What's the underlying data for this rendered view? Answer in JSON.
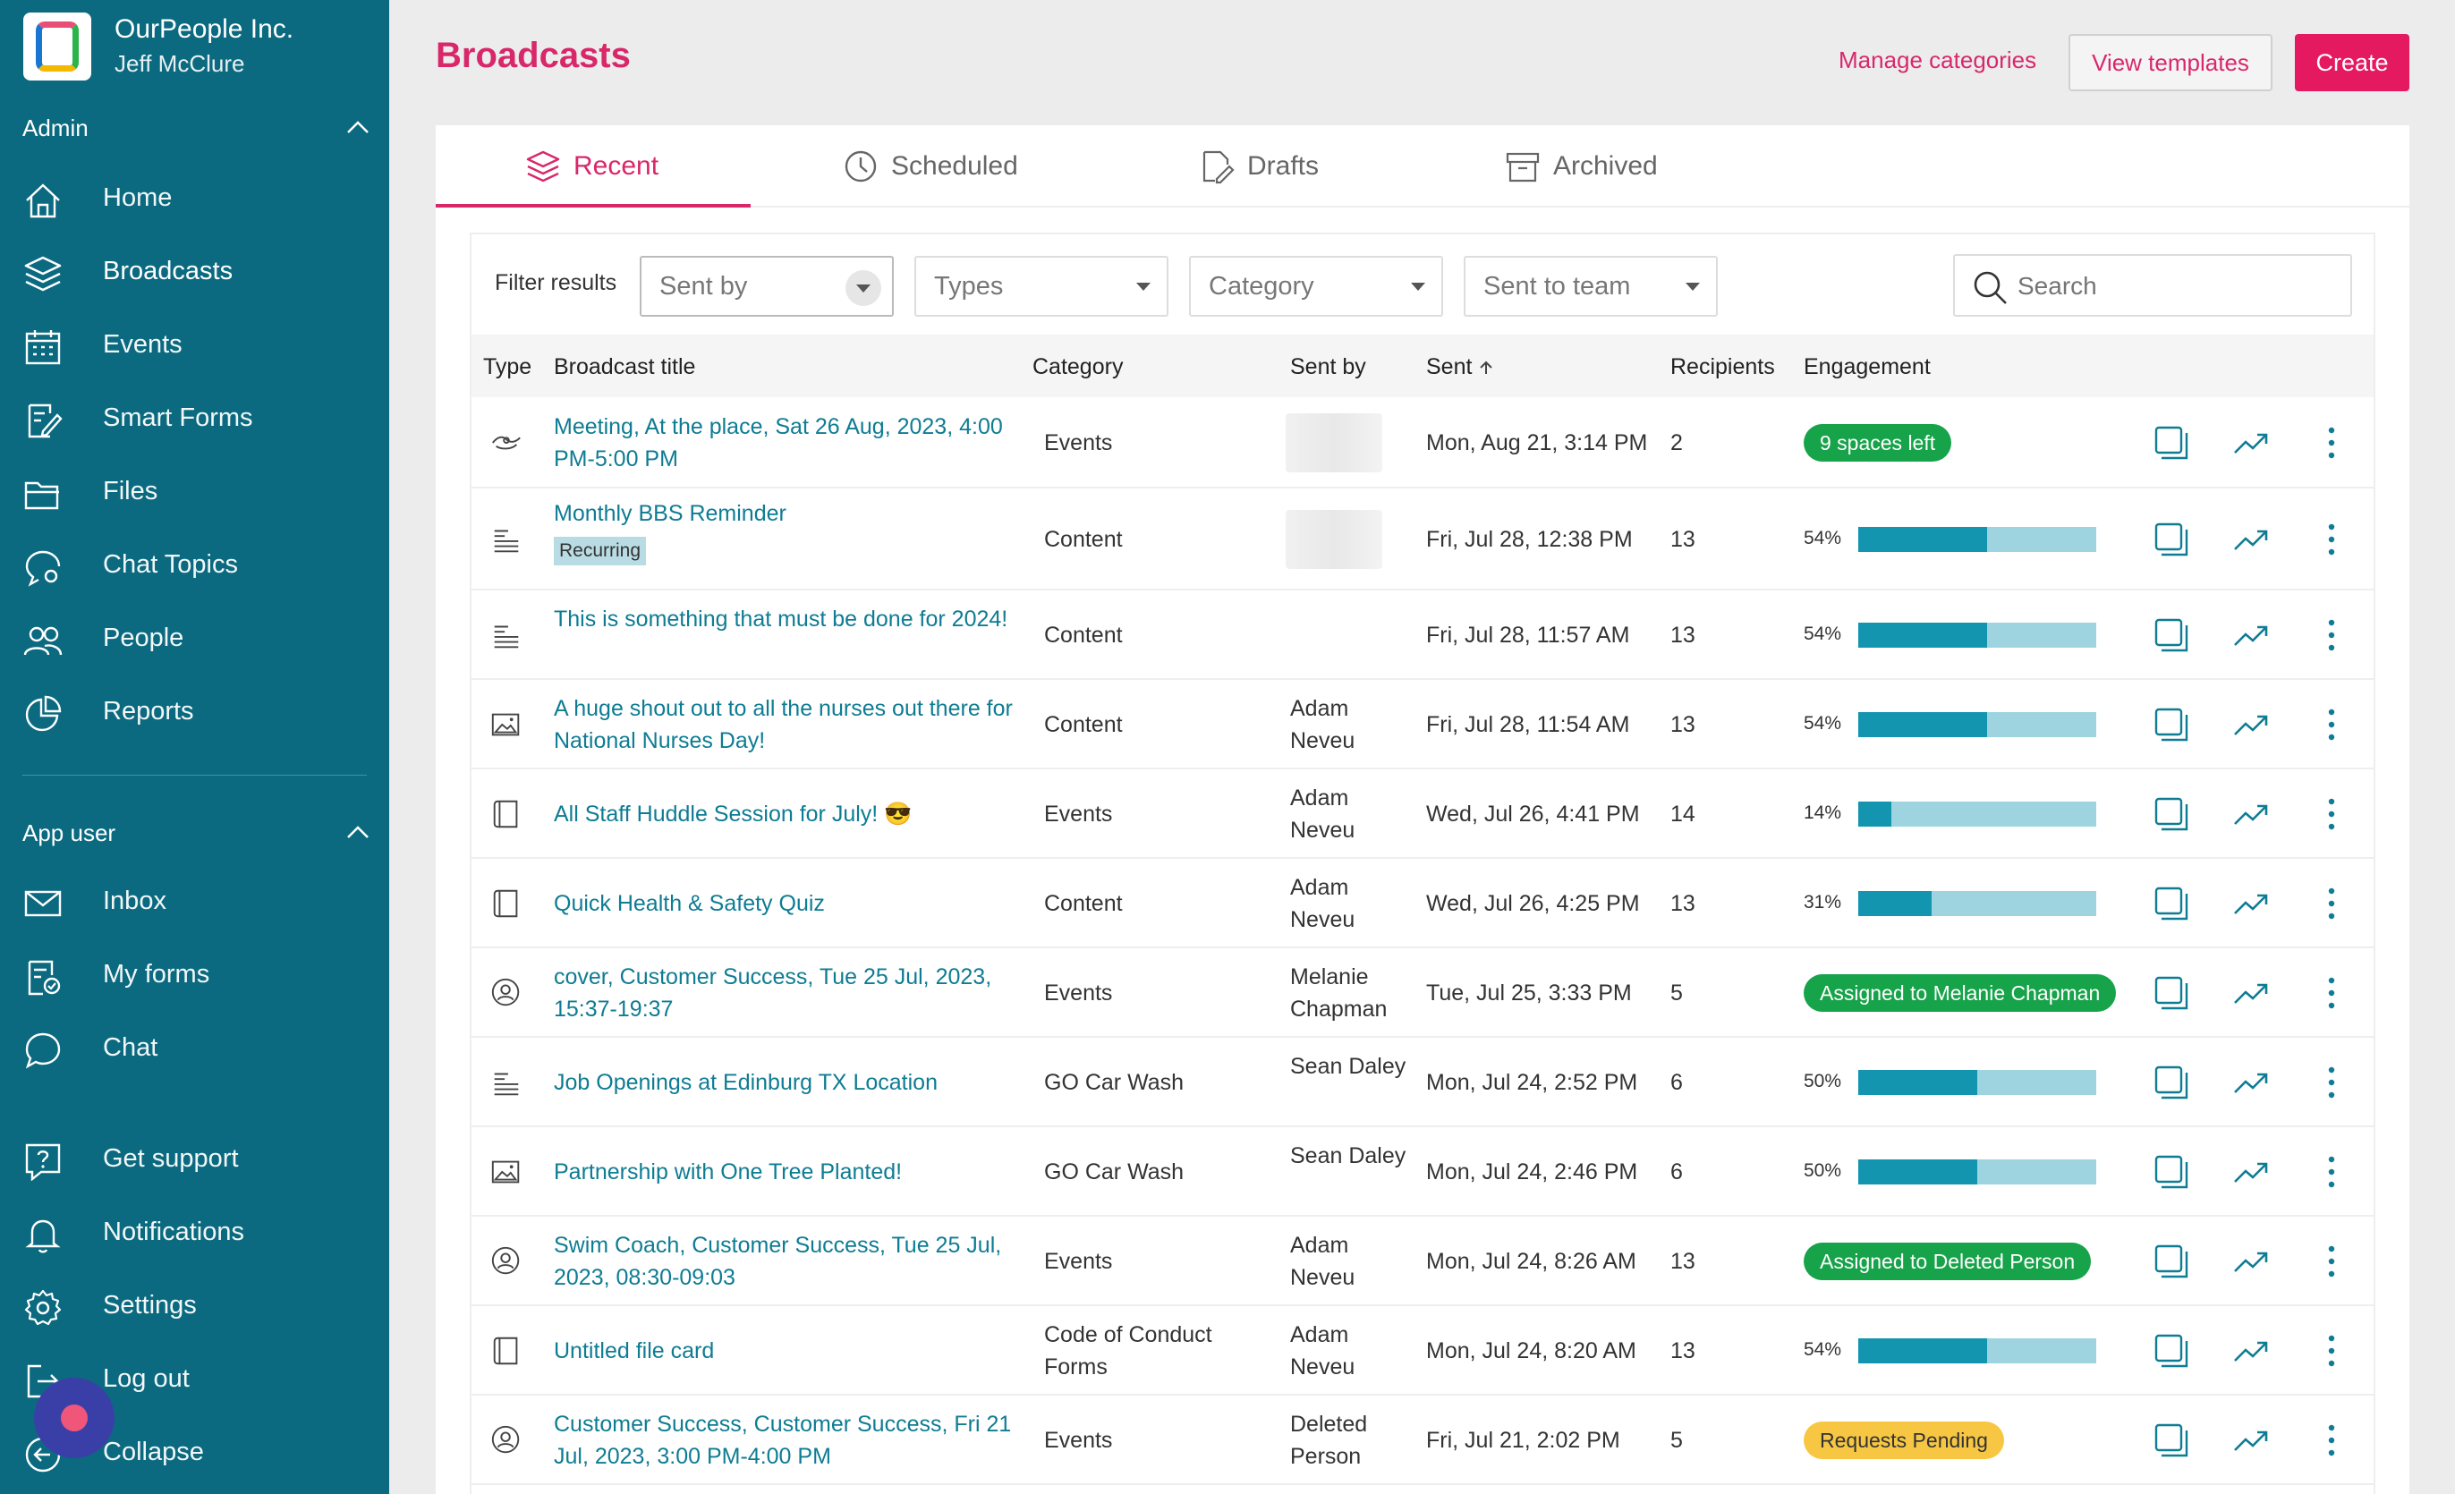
{
  "org": {
    "name": "OurPeople Inc.",
    "user": "Jeff McClure"
  },
  "sidebar": {
    "admin_label": "Admin",
    "admin_items": [
      {
        "label": "Home",
        "icon": "home-icon"
      },
      {
        "label": "Broadcasts",
        "icon": "layers-icon"
      },
      {
        "label": "Events",
        "icon": "calendar-icon"
      },
      {
        "label": "Smart Forms",
        "icon": "form-edit-icon"
      },
      {
        "label": "Files",
        "icon": "folder-icon"
      },
      {
        "label": "Chat Topics",
        "icon": "chat-settings-icon"
      },
      {
        "label": "People",
        "icon": "people-icon"
      },
      {
        "label": "Reports",
        "icon": "pie-chart-icon"
      }
    ],
    "app_user_label": "App user",
    "app_user_items": [
      {
        "label": "Inbox",
        "icon": "mail-icon"
      },
      {
        "label": "My forms",
        "icon": "form-check-icon"
      },
      {
        "label": "Chat",
        "icon": "chat-bubble-icon"
      }
    ],
    "bottom_items": [
      {
        "label": "Get support",
        "icon": "help-icon"
      },
      {
        "label": "Notifications",
        "icon": "bell-icon"
      },
      {
        "label": "Settings",
        "icon": "gear-icon"
      },
      {
        "label": "Log out",
        "icon": "logout-icon"
      },
      {
        "label": "Collapse",
        "icon": "collapse-icon"
      }
    ]
  },
  "header": {
    "title": "Broadcasts",
    "manage_categories": "Manage categories",
    "view_templates": "View templates",
    "create": "Create"
  },
  "tabs": [
    {
      "label": "Recent",
      "icon": "layers-icon",
      "active": true
    },
    {
      "label": "Scheduled",
      "icon": "clock-icon"
    },
    {
      "label": "Drafts",
      "icon": "draft-icon"
    },
    {
      "label": "Archived",
      "icon": "archive-icon"
    }
  ],
  "filters": {
    "label": "Filter results",
    "sent_by": "Sent by",
    "types": "Types",
    "category": "Category",
    "sent_to_team": "Sent to team",
    "search_placeholder": "Search"
  },
  "table": {
    "headers": {
      "type": "Type",
      "title": "Broadcast title",
      "category": "Category",
      "sent_by": "Sent by",
      "sent": "Sent",
      "recipients": "Recipients",
      "engagement": "Engagement"
    },
    "rows": [
      {
        "type_icon": "event-icon",
        "title": "Meeting, At the place, Sat 26 Aug, 2023, 4:00 PM-5:00 PM",
        "category": "Events",
        "sent_by": "",
        "sent": "Mon, Aug 21, 3:14 PM",
        "recipients": "2",
        "badge": "9 spaces left",
        "badge_color": "#17a34a"
      },
      {
        "type_icon": "text-icon",
        "title": "Monthly BBS Reminder",
        "tag": "Recurring",
        "category": "Content",
        "sent_by": "",
        "sent": "Fri, Jul 28, 12:38 PM",
        "recipients": "13",
        "pct_label": "54%",
        "pct": 54
      },
      {
        "type_icon": "text-icon",
        "title": "This is something that must be done for 2024!",
        "category": "Content",
        "sent_by": "",
        "sent": "Fri, Jul 28, 11:57 AM",
        "recipients": "13",
        "pct_label": "54%",
        "pct": 54
      },
      {
        "type_icon": "image-icon",
        "title": "A huge shout out to all the nurses out there for National Nurses Day!",
        "category": "Content",
        "sent_by": "Adam Neveu",
        "sent": "Fri, Jul 28, 11:54 AM",
        "recipients": "13",
        "pct_label": "54%",
        "pct": 54
      },
      {
        "type_icon": "file-icon",
        "title": "All Staff Huddle Session for July! 😎",
        "category": "Events",
        "sent_by": "Adam Neveu",
        "sent": "Wed, Jul 26, 4:41 PM",
        "recipients": "14",
        "pct_label": "14%",
        "pct": 14
      },
      {
        "type_icon": "file-icon",
        "title": "Quick Health & Safety Quiz",
        "category": "Content",
        "sent_by": "Adam Neveu",
        "sent": "Wed, Jul 26, 4:25 PM",
        "recipients": "13",
        "pct_label": "31%",
        "pct": 31
      },
      {
        "type_icon": "shift-icon",
        "title": "cover, Customer Success, Tue 25 Jul, 2023, 15:37-19:37",
        "category": "Events",
        "sent_by": "Melanie Chapman",
        "sent": "Tue, Jul 25, 3:33 PM",
        "recipients": "5",
        "badge": "Assigned to Melanie Chapman",
        "badge_color": "#17a34a"
      },
      {
        "type_icon": "text-icon",
        "title": "Job Openings at Edinburg TX Location",
        "category": "GO Car Wash",
        "sent_by": "Sean Daley",
        "sent": "Mon, Jul 24, 2:52 PM",
        "recipients": "6",
        "pct_label": "50%",
        "pct": 50
      },
      {
        "type_icon": "image-icon",
        "title": "Partnership with One Tree Planted!",
        "category": "GO Car Wash",
        "sent_by": "Sean Daley",
        "sent": "Mon, Jul 24, 2:46 PM",
        "recipients": "6",
        "pct_label": "50%",
        "pct": 50
      },
      {
        "type_icon": "shift-icon",
        "title": "Swim Coach, Customer Success, Tue 25 Jul, 2023, 08:30-09:03",
        "category": "Events",
        "sent_by": "Adam Neveu",
        "sent": "Mon, Jul 24, 8:26 AM",
        "recipients": "13",
        "badge": "Assigned to Deleted Person",
        "badge_color": "#17a34a"
      },
      {
        "type_icon": "file-icon",
        "title": "Untitled file card",
        "category": "Code of Conduct Forms",
        "sent_by": "Adam Neveu",
        "sent": "Mon, Jul 24, 8:20 AM",
        "recipients": "13",
        "pct_label": "54%",
        "pct": 54
      },
      {
        "type_icon": "shift-icon",
        "title": "Customer Success, Customer Success, Fri 21 Jul, 2023, 3:00 PM-4:00 PM",
        "category": "Events",
        "sent_by": "Deleted Person",
        "sent": "Fri, Jul 21, 2:02 PM",
        "recipients": "5",
        "badge": "Requests Pending",
        "badge_color": "#f7c744"
      }
    ]
  },
  "colors": {
    "sidebar": "#0b6a80",
    "accent": "#d8286a",
    "link": "#0e7c93",
    "bar": "#1395b0"
  }
}
